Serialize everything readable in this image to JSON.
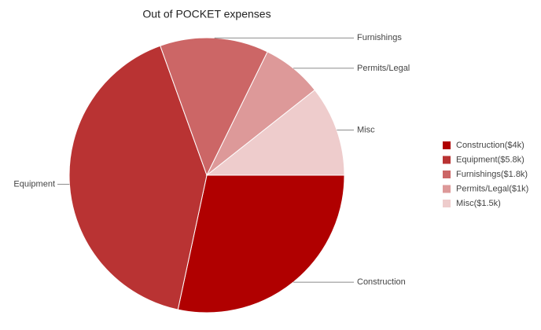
{
  "chart_data": {
    "type": "pie",
    "title": "Out of POCKET expenses",
    "categories": [
      "Construction",
      "Equipment",
      "Furnishings",
      "Permits/Legal",
      "Misc"
    ],
    "values": [
      4000,
      5800,
      1800,
      1000,
      1500
    ],
    "legend_labels": [
      "Construction($4k)",
      "Equipment($5.8k)",
      "Furnishings($1.8k)",
      "Permits/Legal($1k)",
      "Misc($1.5k)"
    ],
    "colors": [
      "#b00000",
      "#b93333",
      "#cc6666",
      "#dd9999",
      "#eecccc"
    ],
    "legend": "right"
  }
}
